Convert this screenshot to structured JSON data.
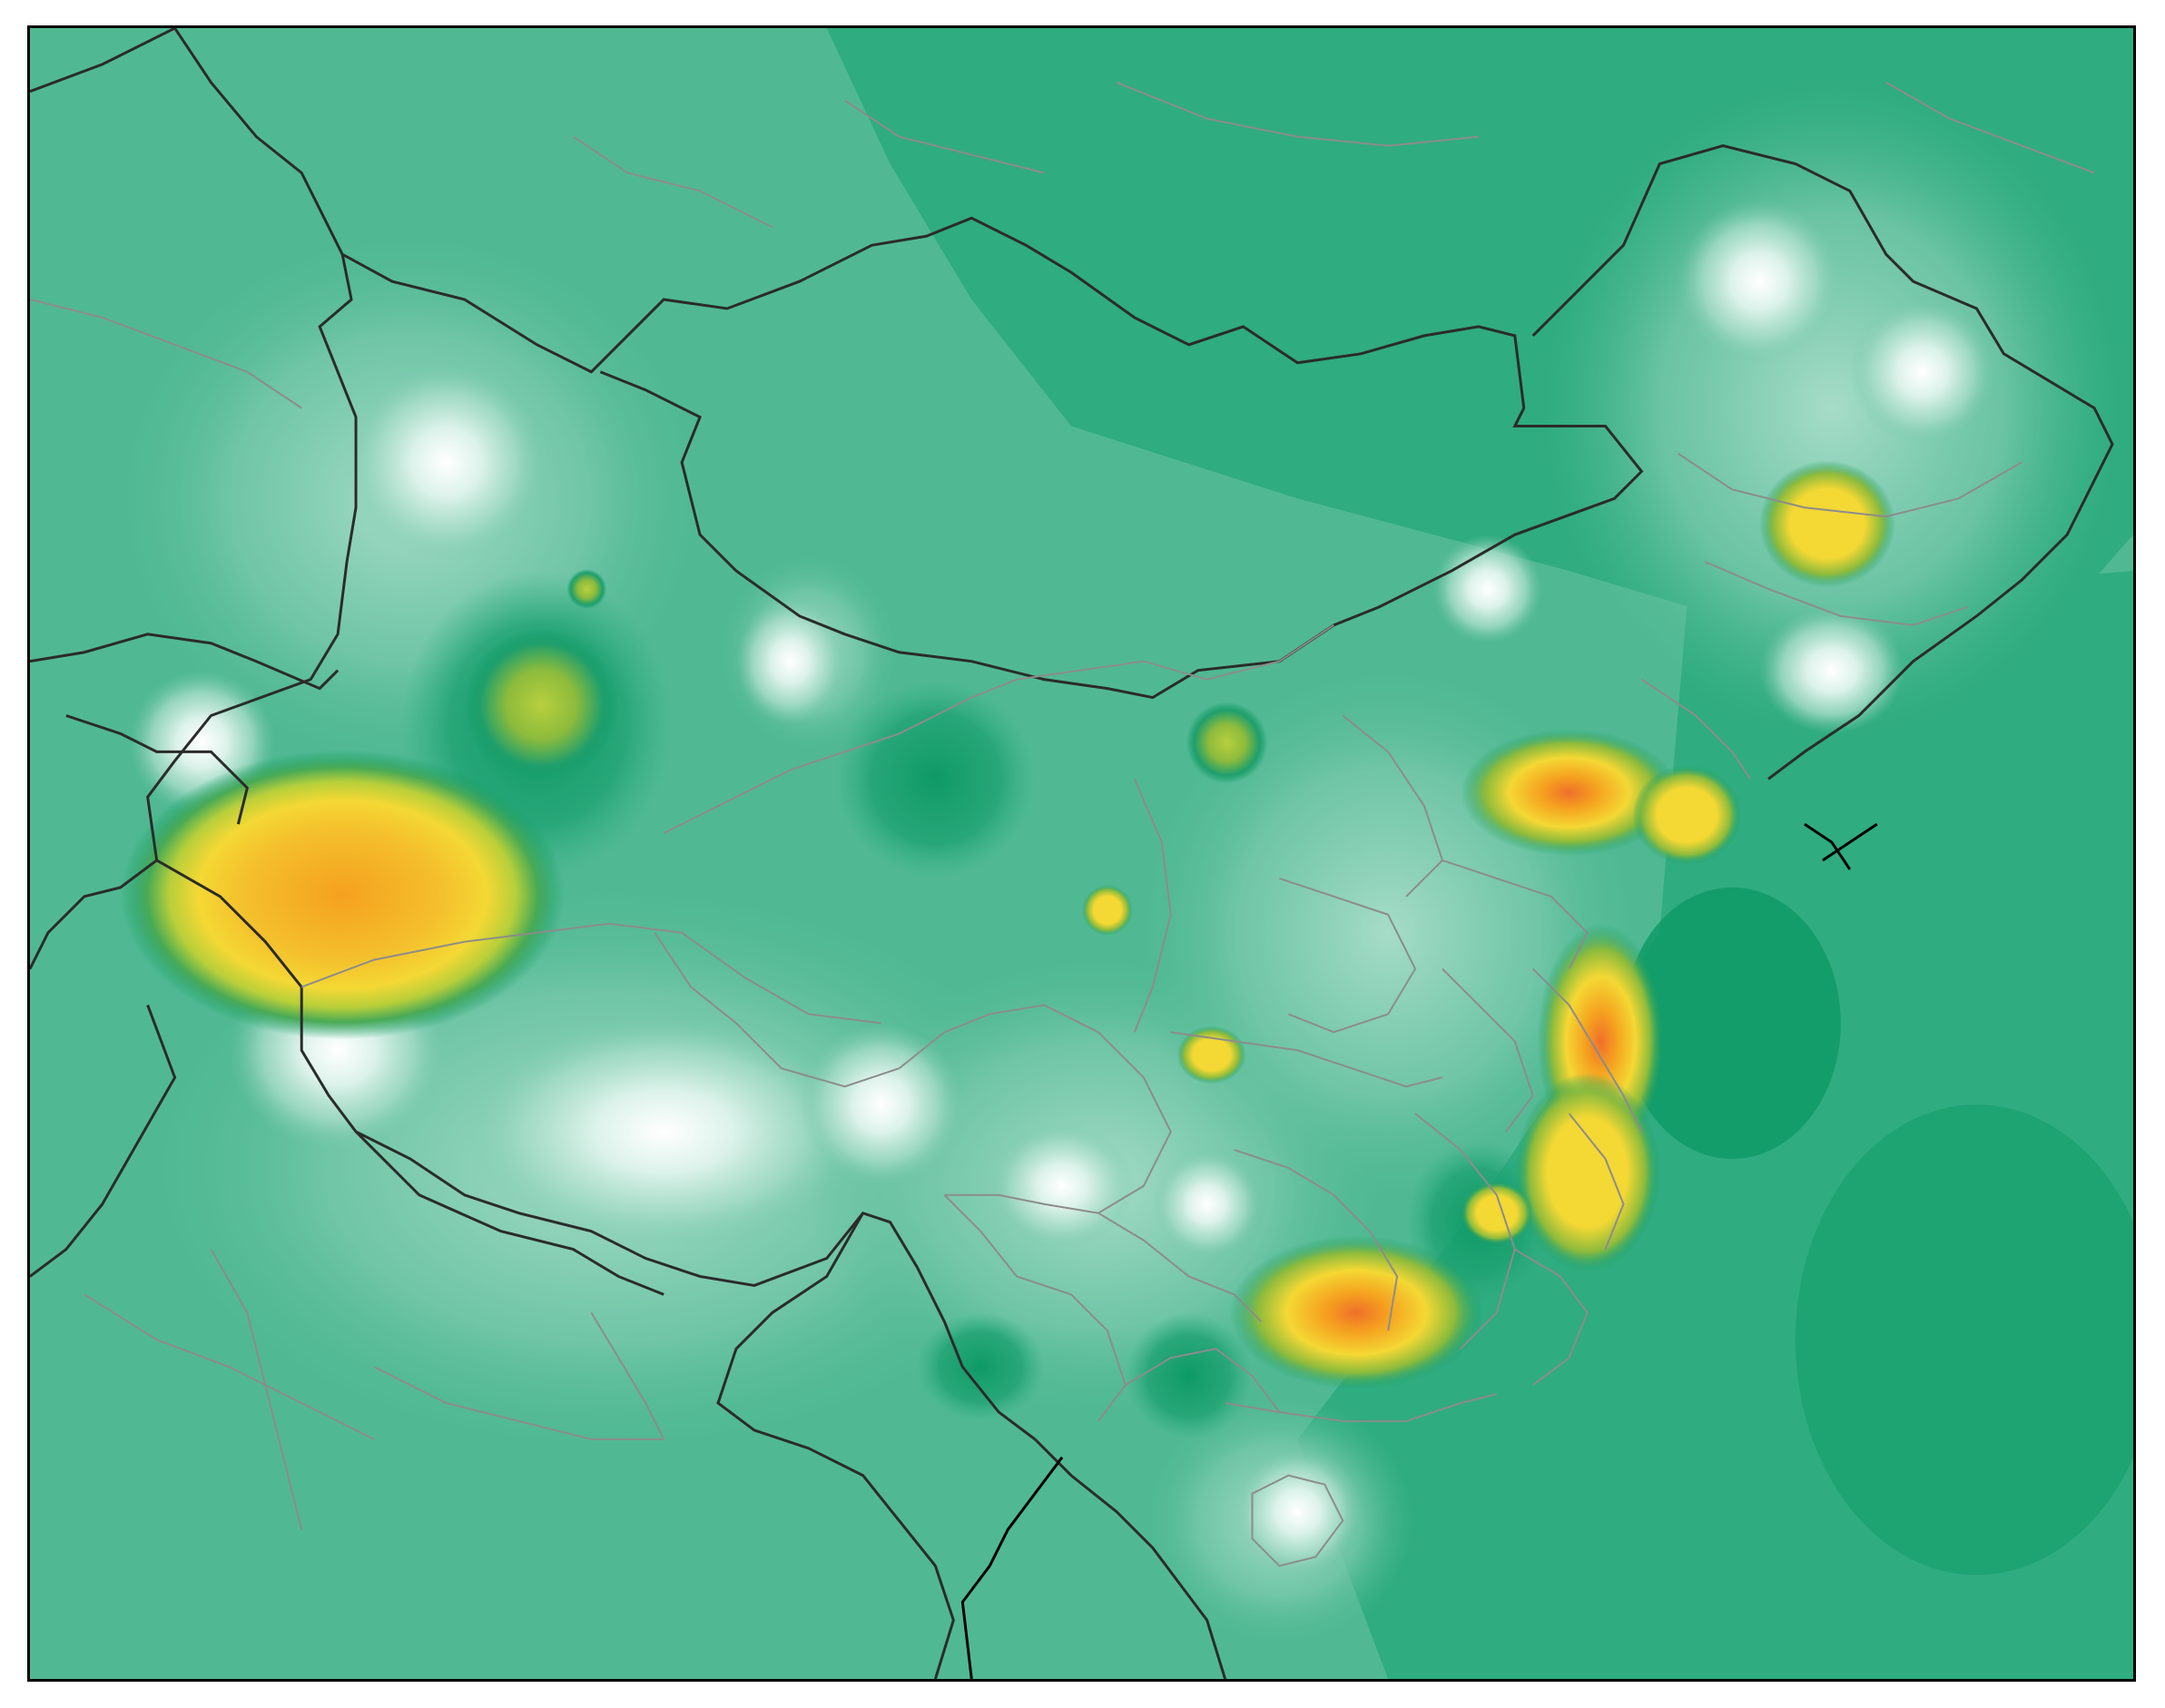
{
  "map": {
    "base_color": "#50b993",
    "palette": {
      "darkest_green": "#0e9a66",
      "dark_green": "#2fac80",
      "medium_green": "#50b993",
      "light_green": "#78c9ab",
      "pale_green": "#a6dcc8",
      "near_white": "#dcf2ea",
      "white": "#ffffff",
      "olive": "#8dbb3c",
      "yellow": "#f4d834",
      "orange": "#f5a11f",
      "red_orange": "#ef6f2a"
    },
    "border_colors": {
      "national": "#2b2b2b",
      "provincial": "#8c8c8c",
      "coastline": "#000000"
    },
    "grid": false,
    "legend": "none"
  }
}
